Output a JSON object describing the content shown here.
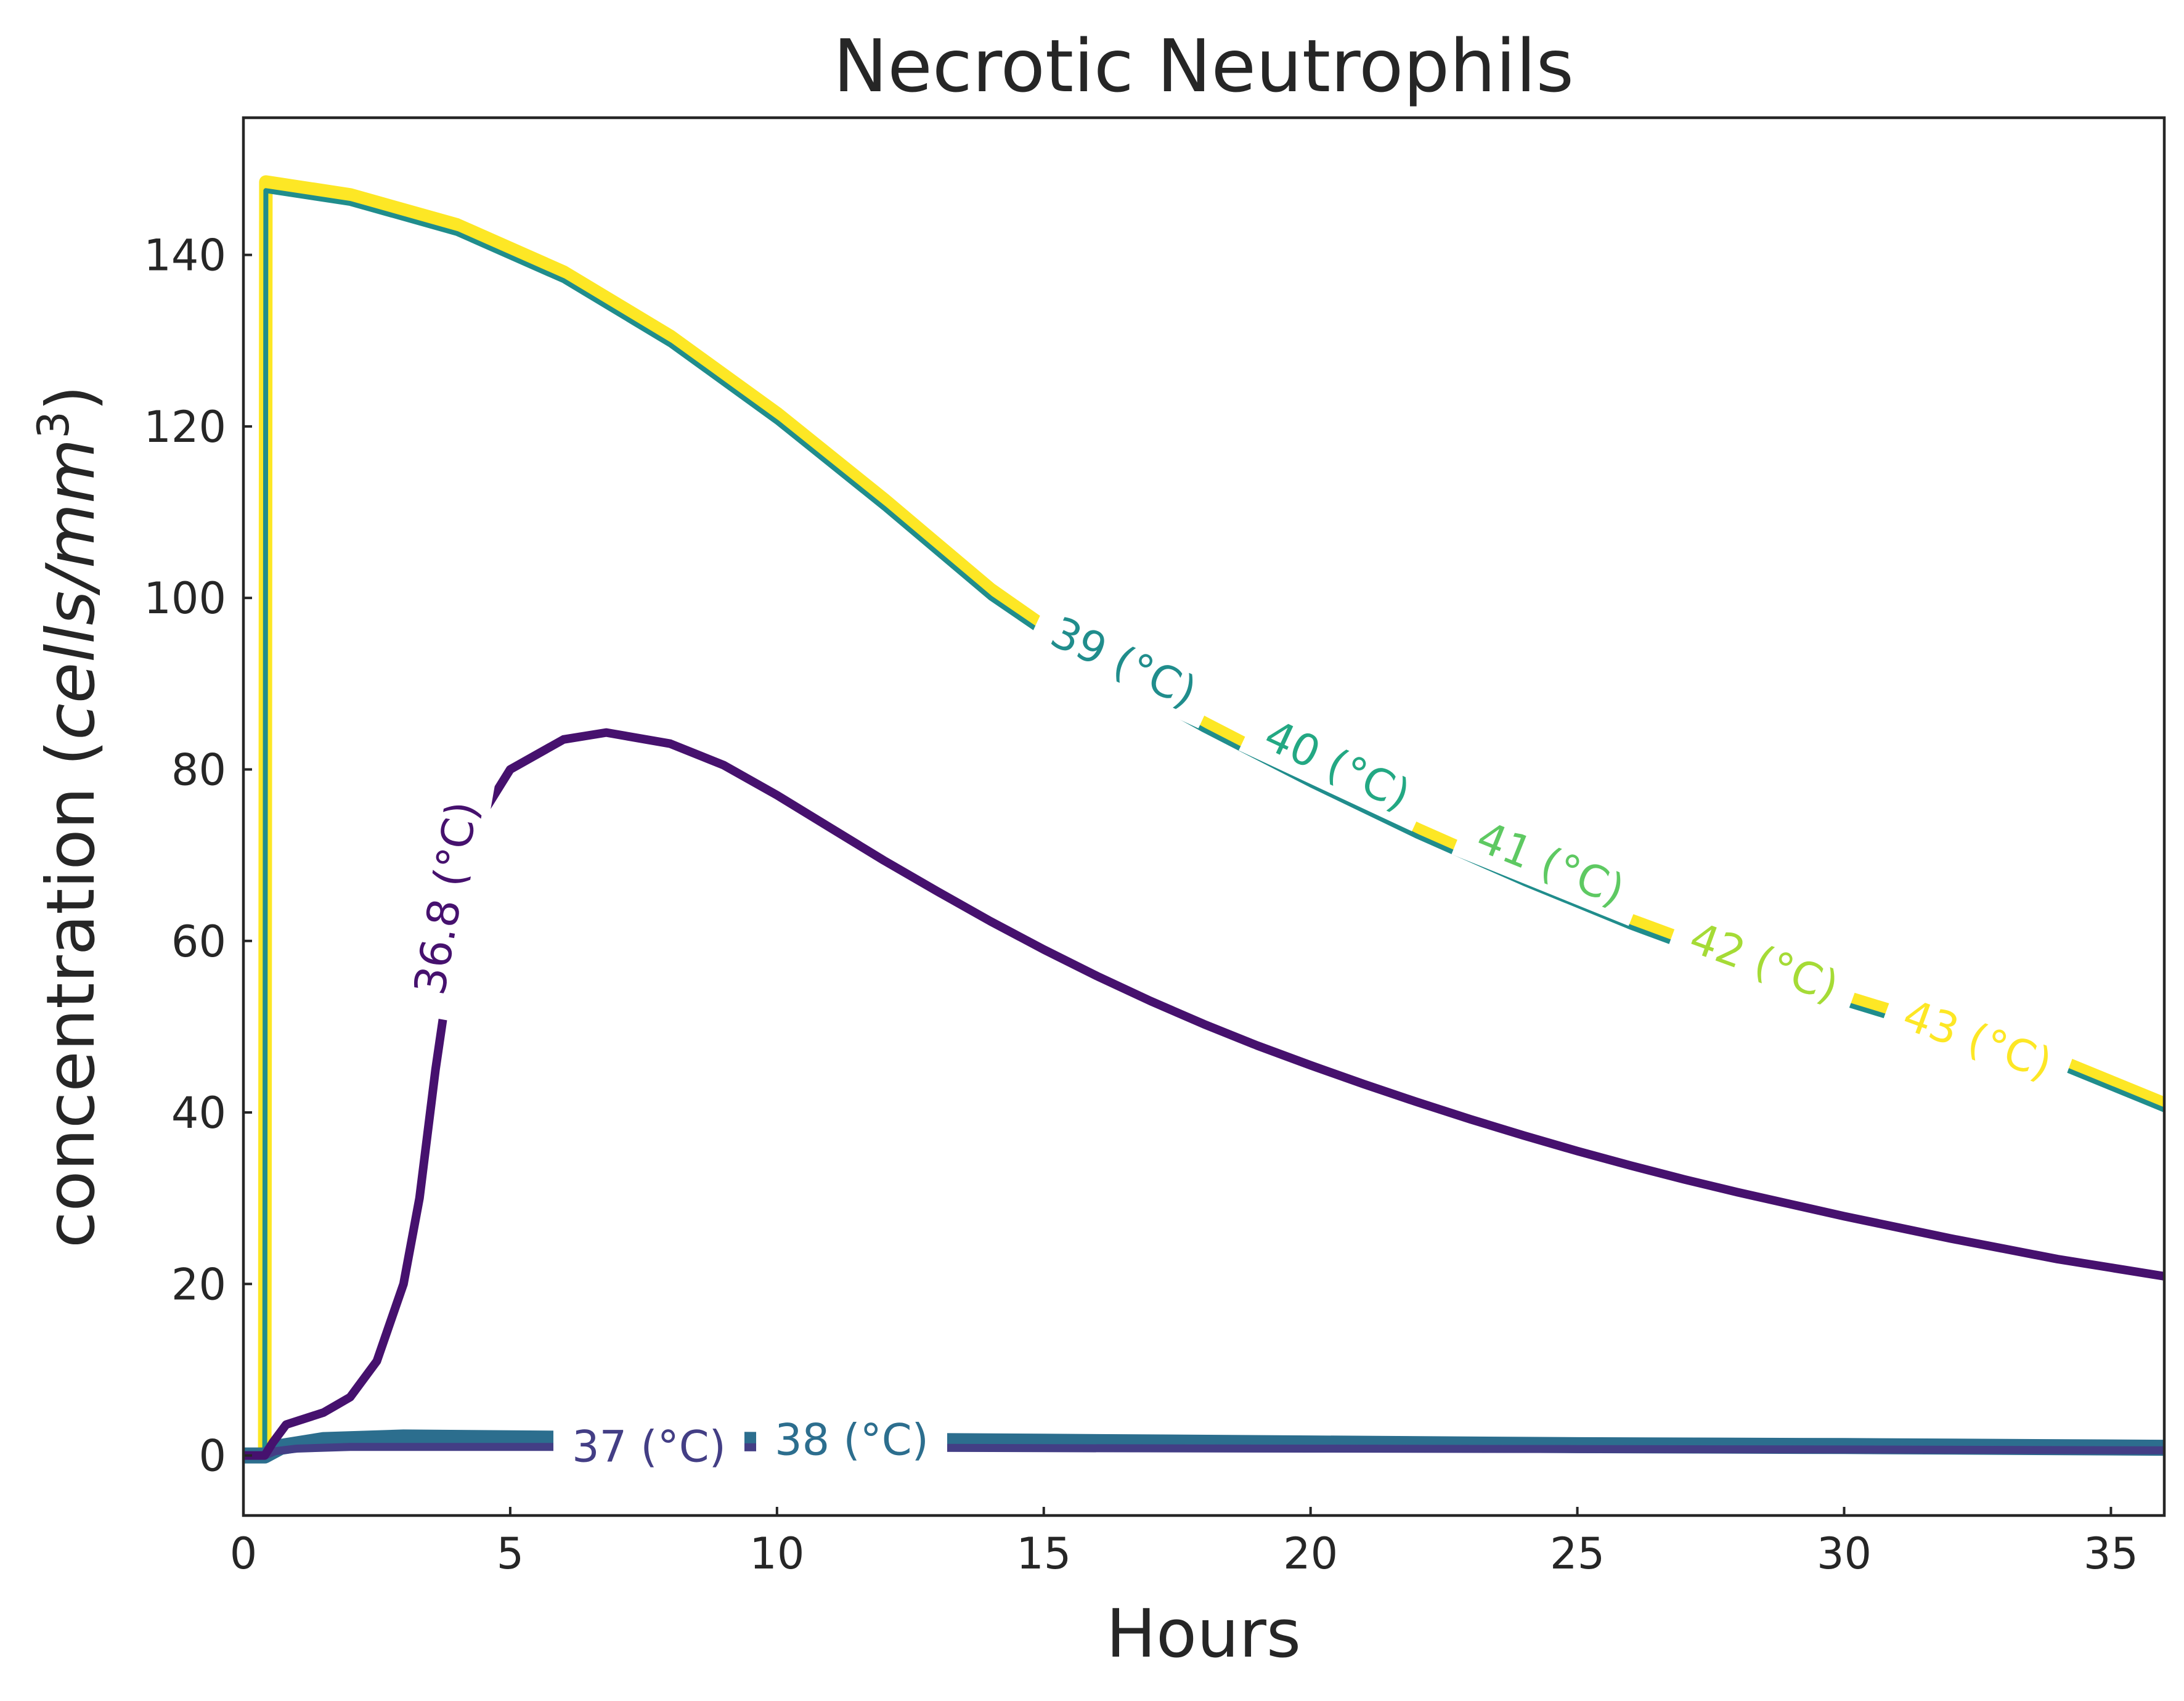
{
  "chart_data": {
    "type": "line",
    "title": "Necrotic Neutrophils",
    "xlabel": "Hours",
    "ylabel_main": "concentration (",
    "ylabel_italic": "cells/mm",
    "ylabel_sup": "3",
    "ylabel_close": ")",
    "xlim": [
      0,
      36
    ],
    "ylim": [
      -7,
      156
    ],
    "xticks": [
      0,
      5,
      10,
      15,
      20,
      25,
      30,
      35
    ],
    "yticks": [
      0,
      20,
      40,
      60,
      80,
      100,
      120,
      140
    ],
    "grid": false,
    "legend": "inline curve labels",
    "series": [
      {
        "name": "36.8 (°C)",
        "color": "#46116e",
        "width": 14,
        "points": [
          [
            0,
            0
          ],
          [
            0.4,
            0
          ],
          [
            0.55,
            1.5
          ],
          [
            0.8,
            3.6
          ],
          [
            1.5,
            5
          ],
          [
            2,
            6.8
          ],
          [
            2.5,
            11
          ],
          [
            3,
            20
          ],
          [
            3.3,
            30
          ],
          [
            3.6,
            45
          ],
          [
            4,
            62
          ],
          [
            4.5,
            75
          ],
          [
            5,
            80
          ],
          [
            6,
            83.5
          ],
          [
            6.8,
            84.3
          ],
          [
            8,
            83
          ],
          [
            9,
            80.5
          ],
          [
            10,
            77
          ],
          [
            11,
            73.2
          ],
          [
            12,
            69.4
          ],
          [
            13,
            65.8
          ],
          [
            14,
            62.3
          ],
          [
            15,
            59
          ],
          [
            16,
            55.9
          ],
          [
            17,
            53
          ],
          [
            18,
            50.3
          ],
          [
            19,
            47.8
          ],
          [
            20,
            45.5
          ],
          [
            21,
            43.3
          ],
          [
            22,
            41.2
          ],
          [
            23,
            39.2
          ],
          [
            24,
            37.3
          ],
          [
            25,
            35.5
          ],
          [
            26,
            33.8
          ],
          [
            27,
            32.2
          ],
          [
            28,
            30.7
          ],
          [
            29,
            29.3
          ],
          [
            30,
            27.9
          ],
          [
            31,
            26.6
          ],
          [
            32,
            25.3
          ],
          [
            33,
            24.1
          ],
          [
            34,
            22.9
          ],
          [
            35,
            21.9
          ],
          [
            36,
            20.9
          ]
        ],
        "label": {
          "text": "36.8 (°C)",
          "at": [
            3.8,
            65
          ],
          "rotation": -80
        }
      },
      {
        "name": "37 (°C)",
        "color": "#433e85",
        "width": 13,
        "points": [
          [
            0,
            0
          ],
          [
            0.4,
            0
          ],
          [
            0.6,
            0.5
          ],
          [
            1,
            0.8
          ],
          [
            2,
            1
          ],
          [
            5,
            1
          ],
          [
            10,
            0.95
          ],
          [
            15,
            0.85
          ],
          [
            20,
            0.8
          ],
          [
            25,
            0.75
          ],
          [
            30,
            0.7
          ],
          [
            36,
            0.6
          ]
        ],
        "label": {
          "text": "37 (°C)",
          "at": [
            7.6,
            1
          ],
          "rotation": 0
        }
      },
      {
        "name": "38 (°C)",
        "color": "#2c6e8e",
        "width": 26,
        "points": [
          [
            0,
            0
          ],
          [
            0.4,
            0
          ],
          [
            0.7,
            1
          ],
          [
            1.5,
            1.8
          ],
          [
            3,
            2.1
          ],
          [
            5,
            2
          ],
          [
            10,
            1.8
          ],
          [
            15,
            1.6
          ],
          [
            20,
            1.4
          ],
          [
            25,
            1.2
          ],
          [
            30,
            1.1
          ],
          [
            36,
            0.9
          ]
        ],
        "label": {
          "text": "38 (°C)",
          "at": [
            11.4,
            1.8
          ],
          "rotation": 0
        }
      },
      {
        "name": "39 (°C)",
        "color": "#208d8c",
        "width": 8,
        "points": [
          [
            0,
            0
          ],
          [
            0.4,
            0
          ],
          [
            0.42,
            147.5
          ],
          [
            2,
            146
          ],
          [
            4,
            142.5
          ],
          [
            6,
            137
          ],
          [
            8,
            129.5
          ],
          [
            10,
            120.5
          ],
          [
            12,
            110.5
          ],
          [
            14,
            100
          ],
          [
            16,
            91.5
          ],
          [
            18,
            84.6
          ],
          [
            20,
            78.2
          ],
          [
            22,
            72.2
          ],
          [
            24,
            66.7
          ],
          [
            26,
            61.6
          ],
          [
            28,
            57
          ],
          [
            30,
            52.7
          ],
          [
            32,
            48.9
          ],
          [
            34,
            45.4
          ],
          [
            36,
            40.3
          ]
        ],
        "label": {
          "text": "39 (°C)",
          "at": [
            16.5,
            92.5
          ],
          "rotation": 25
        }
      },
      {
        "name": "40 (°C)",
        "color": "#23a883",
        "width": 8,
        "points": [
          [
            0,
            0
          ],
          [
            0.4,
            0
          ],
          [
            0.42,
            147.8
          ],
          [
            36,
            40.5
          ]
        ],
        "label": {
          "text": "40 (°C)",
          "at": [
            20.5,
            80.5
          ],
          "rotation": 25
        }
      },
      {
        "name": "41 (°C)",
        "color": "#5ec962",
        "width": 8,
        "points": [
          [
            0,
            0
          ],
          [
            0.4,
            0
          ],
          [
            0.42,
            148
          ],
          [
            36,
            40.7
          ]
        ],
        "label": {
          "text": "41 (°C)",
          "at": [
            24.5,
            69
          ],
          "rotation": 22
        }
      },
      {
        "name": "42 (°C)",
        "color": "#a5db36",
        "width": 8,
        "points": [
          [
            0,
            0
          ],
          [
            0.4,
            0
          ],
          [
            0.42,
            148.2
          ],
          [
            36,
            40.9
          ]
        ],
        "label": {
          "text": "42 (°C)",
          "at": [
            28.5,
            57.5
          ],
          "rotation": 20
        }
      },
      {
        "name": "43 (°C)",
        "color": "#fde725",
        "width": 22,
        "points": [
          [
            0,
            0
          ],
          [
            0.4,
            0
          ],
          [
            0.42,
            148.5
          ],
          [
            2,
            147
          ],
          [
            4,
            143.5
          ],
          [
            6,
            138
          ],
          [
            8,
            130.5
          ],
          [
            10,
            121.5
          ],
          [
            12,
            111.5
          ],
          [
            14,
            101
          ],
          [
            16,
            92.3
          ],
          [
            18,
            85.4
          ],
          [
            20,
            79
          ],
          [
            22,
            73
          ],
          [
            24,
            67.5
          ],
          [
            26,
            62.4
          ],
          [
            28,
            57.8
          ],
          [
            30,
            53.5
          ],
          [
            32,
            49.7
          ],
          [
            34,
            46.1
          ],
          [
            36,
            41
          ]
        ],
        "label": {
          "text": "43 (°C)",
          "at": [
            32.5,
            48.5
          ],
          "rotation": 20
        }
      }
    ],
    "draw_order": [
      "43 (°C)",
      "39 (°C)",
      "38 (°C)",
      "37 (°C)",
      "36.8 (°C)"
    ]
  }
}
